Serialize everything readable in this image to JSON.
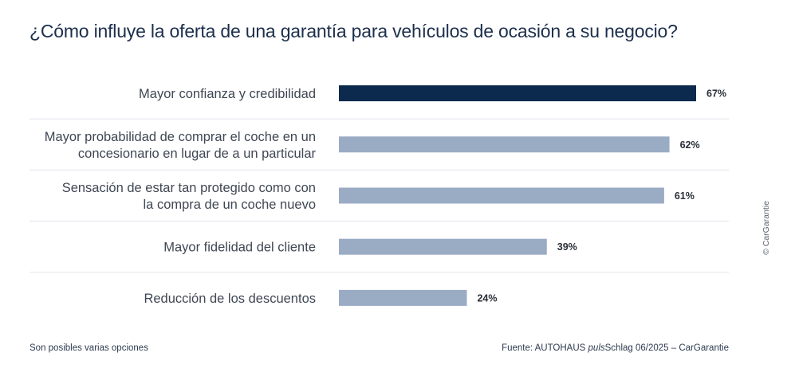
{
  "chart_data": {
    "type": "bar",
    "orientation": "horizontal",
    "title": "¿Cómo influye la oferta de una garantía para vehículos de ocasión a su negocio?",
    "categories": [
      [
        "Mayor confianza y credibilidad"
      ],
      [
        "Mayor probabilidad de comprar el coche en un",
        "concesionario en lugar de a un particular"
      ],
      [
        "Sensación de estar tan protegido como con",
        "la compra de un coche nuevo"
      ],
      [
        "Mayor fidelidad del cliente"
      ],
      [
        "Reducción de los descuentos"
      ]
    ],
    "values": [
      67,
      62,
      61,
      39,
      24
    ],
    "value_labels": [
      "67%",
      "62%",
      "61%",
      "39%",
      "24%"
    ],
    "xlim": [
      0,
      100
    ],
    "highlight_index": 0,
    "colors": {
      "highlight": "#0c2a4d",
      "bar": "#9aabc4",
      "separator": "#dfe3ea"
    },
    "grid": false,
    "legend": "none"
  },
  "footer": {
    "note": "Son posibles varias opciones",
    "source_prefix": "Fuente: AUTOHAUS ",
    "source_italic": "puls",
    "source_suffix": "Schlag 06/2025 – CarGarantie"
  },
  "copyright": "© CarGarantie"
}
